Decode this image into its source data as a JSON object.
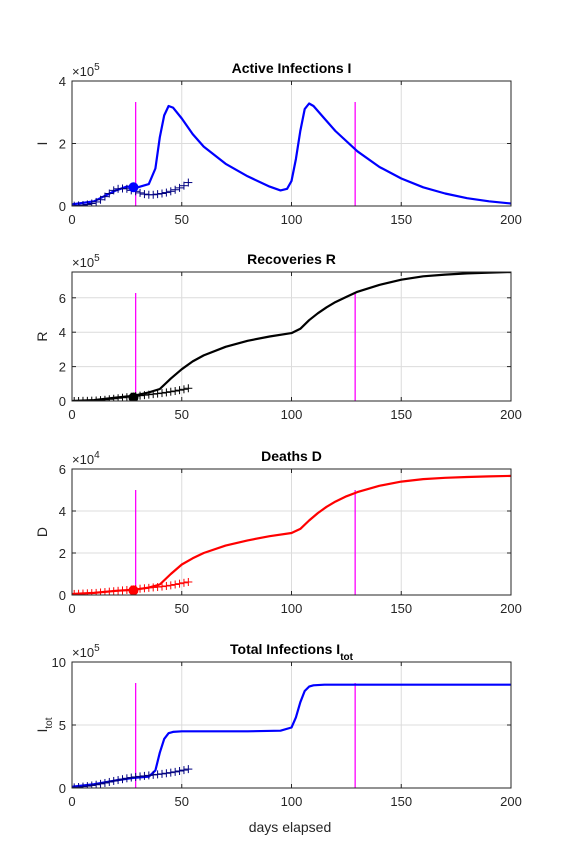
{
  "figure": {
    "xlabel": "days elapsed"
  },
  "chart_data": [
    {
      "type": "line",
      "title_main": "Active Infections  I",
      "title_sub": "",
      "ylabel_main": "I",
      "ylabel_sub": "",
      "multiplier_base": "×10",
      "multiplier_exp": "5",
      "xlim": [
        0,
        200
      ],
      "ylim": [
        0,
        4
      ],
      "xticks": [
        "0",
        "50",
        "100",
        "150",
        "200"
      ],
      "yticks": [
        "0",
        "2",
        "4"
      ],
      "grid": true,
      "color": "#0000ff",
      "vlines_x": [
        29,
        129
      ],
      "vline_color": "#ff00ff",
      "model": {
        "x": [
          0,
          10,
          20,
          25,
          30,
          35,
          38,
          40,
          42,
          44,
          46,
          50,
          55,
          60,
          70,
          80,
          90,
          95,
          98,
          100,
          102,
          104,
          106,
          108,
          110,
          115,
          120,
          130,
          140,
          150,
          160,
          170,
          180,
          190,
          200
        ],
        "y": [
          0.05,
          0.15,
          0.5,
          0.62,
          0.6,
          0.7,
          1.2,
          2.2,
          2.9,
          3.2,
          3.15,
          2.8,
          2.3,
          1.9,
          1.35,
          0.95,
          0.62,
          0.5,
          0.55,
          0.8,
          1.5,
          2.4,
          3.1,
          3.28,
          3.2,
          2.8,
          2.4,
          1.75,
          1.25,
          0.88,
          0.6,
          0.4,
          0.25,
          0.15,
          0.08
        ]
      },
      "observed": {
        "x": [
          1,
          3,
          5,
          7,
          9,
          11,
          13,
          15,
          17,
          19,
          21,
          23,
          25,
          27,
          29,
          31,
          33,
          35,
          37,
          39,
          41,
          43,
          45,
          47,
          49,
          51,
          53
        ],
        "y": [
          0.01,
          0.02,
          0.03,
          0.05,
          0.08,
          0.13,
          0.2,
          0.3,
          0.4,
          0.5,
          0.55,
          0.56,
          0.55,
          0.5,
          0.47,
          0.42,
          0.38,
          0.36,
          0.36,
          0.38,
          0.4,
          0.43,
          0.47,
          0.52,
          0.58,
          0.65,
          0.75
        ]
      },
      "marker": {
        "x": 28,
        "y": 0.6
      }
    },
    {
      "type": "line",
      "title_main": "Recoveries  R",
      "title_sub": "",
      "ylabel_main": "R",
      "ylabel_sub": "",
      "multiplier_base": "×10",
      "multiplier_exp": "5",
      "xlim": [
        0,
        200
      ],
      "ylim": [
        0,
        7.5
      ],
      "xticks": [
        "0",
        "50",
        "100",
        "150",
        "200"
      ],
      "yticks": [
        "0",
        "2",
        "4",
        "6"
      ],
      "grid": true,
      "color": "#000000",
      "vlines_x": [
        29,
        129
      ],
      "vline_color": "#ff00ff",
      "model": {
        "x": [
          0,
          10,
          20,
          28,
          35,
          40,
          45,
          50,
          55,
          60,
          70,
          80,
          90,
          100,
          104,
          108,
          112,
          116,
          120,
          125,
          130,
          140,
          150,
          160,
          170,
          180,
          190,
          200
        ],
        "y": [
          0.0,
          0.05,
          0.2,
          0.3,
          0.5,
          0.7,
          1.3,
          1.85,
          2.3,
          2.65,
          3.15,
          3.5,
          3.75,
          3.95,
          4.2,
          4.7,
          5.1,
          5.45,
          5.75,
          6.05,
          6.35,
          6.75,
          7.05,
          7.25,
          7.35,
          7.42,
          7.46,
          7.5
        ]
      },
      "observed": {
        "x": [
          1,
          3,
          5,
          7,
          9,
          11,
          13,
          15,
          17,
          19,
          21,
          23,
          25,
          27,
          29,
          31,
          33,
          35,
          37,
          39,
          41,
          43,
          45,
          47,
          49,
          51,
          53
        ],
        "y": [
          0.0,
          0.0,
          0.01,
          0.01,
          0.02,
          0.03,
          0.05,
          0.07,
          0.1,
          0.13,
          0.16,
          0.19,
          0.22,
          0.25,
          0.28,
          0.31,
          0.34,
          0.37,
          0.4,
          0.43,
          0.46,
          0.5,
          0.54,
          0.58,
          0.63,
          0.68,
          0.74
        ]
      },
      "marker": {
        "x": 28,
        "y": 0.2
      }
    },
    {
      "type": "line",
      "title_main": "Deaths  D",
      "title_sub": "",
      "ylabel_main": "D",
      "ylabel_sub": "",
      "multiplier_base": "×10",
      "multiplier_exp": "4",
      "xlim": [
        0,
        200
      ],
      "ylim": [
        0,
        6
      ],
      "xticks": [
        "0",
        "50",
        "100",
        "150",
        "200"
      ],
      "yticks": [
        "0",
        "2",
        "4",
        "6"
      ],
      "grid": true,
      "color": "#ff0000",
      "vlines_x": [
        29,
        129
      ],
      "vline_color": "#ff00ff",
      "model": {
        "x": [
          0,
          10,
          20,
          28,
          35,
          40,
          45,
          50,
          55,
          60,
          70,
          80,
          90,
          100,
          104,
          108,
          112,
          116,
          120,
          125,
          130,
          140,
          150,
          160,
          170,
          180,
          190,
          200
        ],
        "y": [
          0.05,
          0.1,
          0.2,
          0.25,
          0.35,
          0.5,
          1.0,
          1.45,
          1.75,
          2.0,
          2.35,
          2.6,
          2.8,
          2.95,
          3.15,
          3.55,
          3.9,
          4.2,
          4.45,
          4.7,
          4.9,
          5.2,
          5.4,
          5.52,
          5.58,
          5.62,
          5.65,
          5.67
        ]
      },
      "observed": {
        "x": [
          1,
          3,
          5,
          7,
          9,
          11,
          13,
          15,
          17,
          19,
          21,
          23,
          25,
          27,
          29,
          31,
          33,
          35,
          37,
          39,
          41,
          43,
          45,
          47,
          49,
          51,
          53
        ],
        "y": [
          0.05,
          0.06,
          0.07,
          0.08,
          0.09,
          0.1,
          0.12,
          0.14,
          0.16,
          0.18,
          0.2,
          0.22,
          0.24,
          0.26,
          0.28,
          0.3,
          0.32,
          0.34,
          0.36,
          0.38,
          0.4,
          0.43,
          0.46,
          0.5,
          0.54,
          0.58,
          0.62
        ]
      },
      "marker": {
        "x": 28,
        "y": 0.22
      }
    },
    {
      "type": "line",
      "title_main": "Total Infections I",
      "title_sub": "tot",
      "ylabel_main": "I",
      "ylabel_sub": "tot",
      "multiplier_base": "×10",
      "multiplier_exp": "5",
      "xlim": [
        0,
        200
      ],
      "ylim": [
        0,
        10
      ],
      "xticks": [
        "0",
        "50",
        "100",
        "150",
        "200"
      ],
      "yticks": [
        "0",
        "5",
        "10"
      ],
      "grid": true,
      "color": "#0000ff",
      "vlines_x": [
        29,
        129
      ],
      "vline_color": "#ff00ff",
      "model": {
        "x": [
          0,
          10,
          20,
          28,
          35,
          38,
          40,
          42,
          44,
          46,
          50,
          60,
          80,
          95,
          100,
          102,
          104,
          106,
          108,
          110,
          115,
          130,
          150,
          200
        ],
        "y": [
          0.1,
          0.3,
          0.6,
          0.8,
          0.9,
          1.4,
          2.8,
          3.9,
          4.35,
          4.45,
          4.5,
          4.5,
          4.5,
          4.55,
          4.8,
          5.6,
          6.8,
          7.7,
          8.05,
          8.15,
          8.2,
          8.2,
          8.2,
          8.2
        ]
      },
      "observed": {
        "x": [
          1,
          3,
          5,
          7,
          9,
          11,
          13,
          15,
          17,
          19,
          21,
          23,
          25,
          27,
          29,
          31,
          33,
          35,
          37,
          39,
          41,
          43,
          45,
          47,
          49,
          51,
          53
        ],
        "y": [
          0.05,
          0.08,
          0.11,
          0.15,
          0.2,
          0.26,
          0.33,
          0.4,
          0.48,
          0.56,
          0.63,
          0.7,
          0.77,
          0.83,
          0.88,
          0.92,
          0.96,
          1.0,
          1.04,
          1.08,
          1.12,
          1.17,
          1.22,
          1.28,
          1.35,
          1.42,
          1.5
        ]
      }
    }
  ]
}
